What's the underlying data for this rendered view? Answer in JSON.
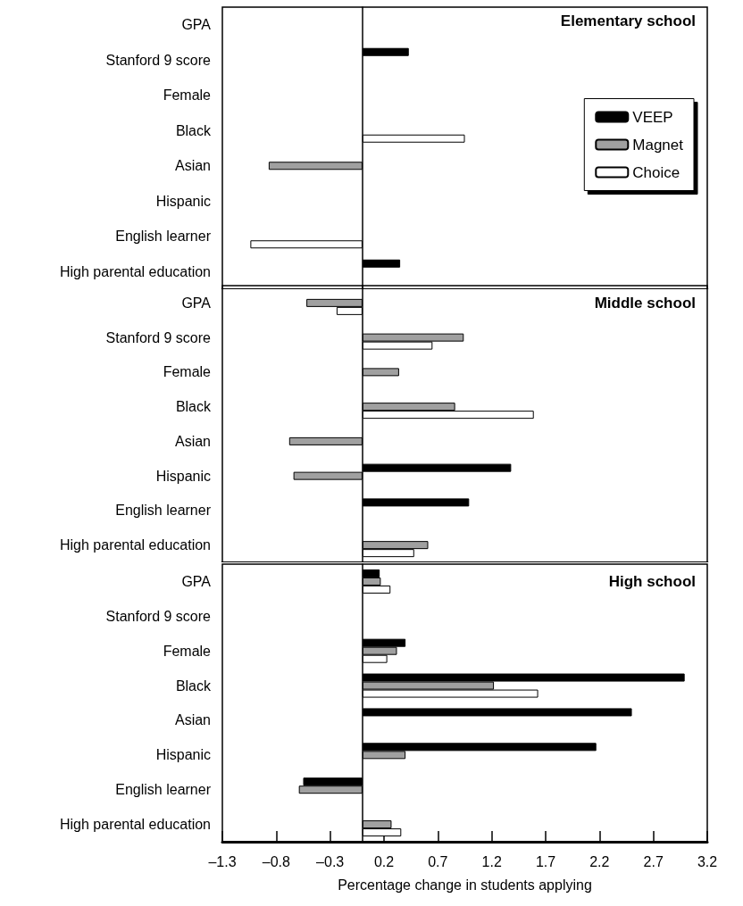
{
  "chart_data": [
    {
      "type": "bar",
      "orientation": "horizontal",
      "title": "Elementary school",
      "categories": [
        "GPA",
        "Stanford 9 score",
        "Female",
        "Black",
        "Asian",
        "Hispanic",
        "English learner",
        "High parental education"
      ],
      "series": [
        {
          "name": "VEEP",
          "color": "#000000",
          "values": [
            null,
            0.43,
            null,
            null,
            null,
            null,
            null,
            0.35
          ]
        },
        {
          "name": "Magnet",
          "color": "#a0a0a0",
          "values": [
            null,
            null,
            null,
            null,
            -0.87,
            null,
            null,
            null
          ]
        },
        {
          "name": "Choice",
          "color": "#ffffff",
          "values": [
            null,
            null,
            null,
            0.95,
            null,
            null,
            -1.04,
            null
          ]
        }
      ],
      "xlim": [
        -1.3,
        3.2
      ],
      "xticks": [
        -1.3,
        -0.8,
        -0.3,
        0.2,
        0.7,
        1.2,
        1.7,
        2.2,
        2.7,
        3.2
      ],
      "tick_labels": "y",
      "legend": "right",
      "grid": false
    },
    {
      "type": "bar",
      "orientation": "horizontal",
      "title": "Middle school",
      "categories": [
        "GPA",
        "Stanford 9 score",
        "Female",
        "Black",
        "Asian",
        "Hispanic",
        "English learner",
        "High parental education"
      ],
      "series": [
        {
          "color": "#000000",
          "values": [
            null,
            null,
            null,
            null,
            null,
            1.38,
            0.99,
            null
          ]
        },
        {
          "color": "#a0a0a0",
          "values": [
            -0.52,
            0.94,
            0.34,
            0.86,
            -0.68,
            -0.64,
            null,
            0.61
          ]
        },
        {
          "color": "#ffffff",
          "values": [
            -0.24,
            0.65,
            null,
            1.59,
            null,
            null,
            null,
            0.48
          ]
        }
      ],
      "xlim": [
        -1.3,
        3.2
      ],
      "xticks": [
        -1.3,
        -0.8,
        -0.3,
        0.2,
        0.7,
        1.2,
        1.7,
        2.2,
        2.7,
        3.2
      ],
      "tick_labels": "y",
      "legend": false,
      "grid": false
    },
    {
      "type": "bar",
      "orientation": "horizontal",
      "title": "High school",
      "xlabel": "Percentage change in students applying",
      "categories": [
        "GPA",
        "Stanford 9 score",
        "Female",
        "Black",
        "Asian",
        "Hispanic",
        "English learner",
        "High parental education"
      ],
      "series": [
        {
          "color": "#000000",
          "values": [
            0.16,
            null,
            0.4,
            2.99,
            2.5,
            2.17,
            -0.55,
            null
          ]
        },
        {
          "color": "#a0a0a0",
          "values": [
            0.17,
            null,
            0.32,
            1.22,
            null,
            0.4,
            -0.59,
            0.27
          ]
        },
        {
          "color": "#ffffff",
          "values": [
            0.26,
            null,
            0.23,
            1.63,
            null,
            null,
            null,
            0.36
          ]
        }
      ],
      "xlim": [
        -1.3,
        3.2
      ],
      "xticks": [
        {
          "value": -1.3,
          "label": "–1.3"
        },
        {
          "value": -0.8,
          "label": "–0.8"
        },
        {
          "value": -0.3,
          "label": "–0.3"
        },
        0.2,
        0.7,
        1.2,
        1.7,
        2.2,
        2.7,
        3.2
      ],
      "legend": false,
      "grid": false
    }
  ]
}
